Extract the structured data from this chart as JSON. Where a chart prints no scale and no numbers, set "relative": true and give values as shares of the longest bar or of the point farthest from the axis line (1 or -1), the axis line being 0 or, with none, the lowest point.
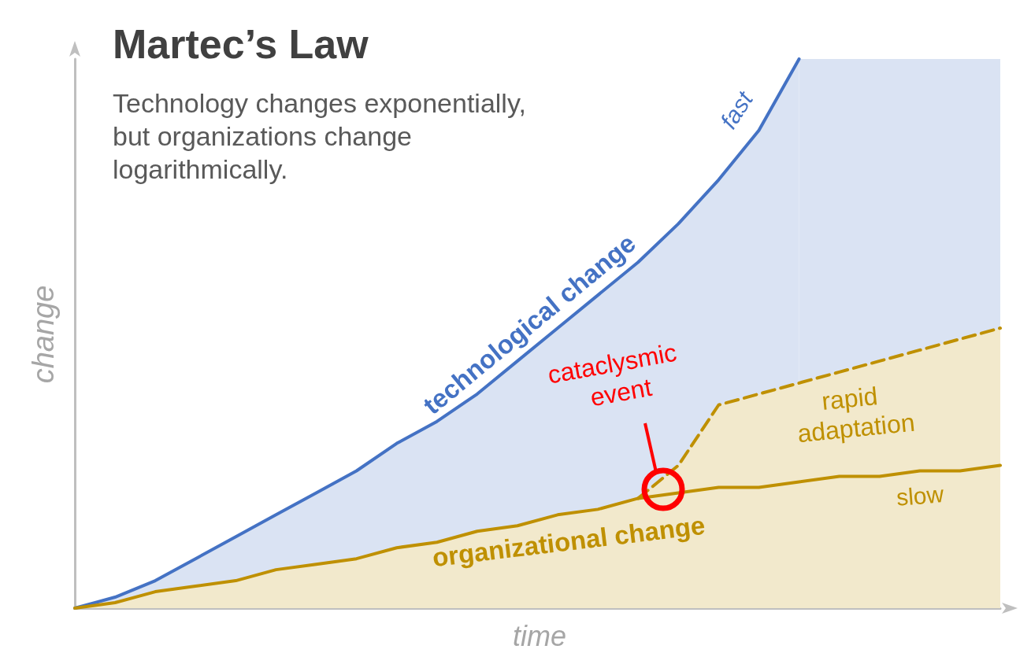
{
  "chart_data": {
    "type": "line",
    "title": "Martec’s Law",
    "subtitle": "Technology changes exponentially, but organizations change logarithmically.",
    "xlabel": "time",
    "ylabel": "change",
    "relative": true,
    "marker": "none",
    "annotations": [
      "fast",
      "cataclysmic event",
      "rapid adaptation",
      "slow"
    ],
    "categories": [
      null,
      null,
      null,
      null,
      null,
      null,
      null,
      null,
      null,
      null,
      null,
      null,
      null,
      null,
      null,
      null,
      null,
      null,
      null,
      null,
      null,
      null,
      null,
      null
    ],
    "series": [
      {
        "type": "area",
        "name": "technological change",
        "color": "#4472c4",
        "values": [
          0,
          0.02,
          0.05,
          0.09,
          0.13,
          0.17,
          0.21,
          0.25,
          0.3,
          0.34,
          0.39,
          0.45,
          0.51,
          0.57,
          0.63,
          0.7,
          0.78,
          0.87,
          1,
          null,
          null,
          null,
          null,
          null
        ]
      },
      {
        "type": "area",
        "color": "#dae3f3",
        "line_style": "none",
        "values": [
          null,
          null,
          null,
          null,
          null,
          null,
          null,
          null,
          null,
          null,
          null,
          null,
          null,
          null,
          null,
          null,
          null,
          null,
          1,
          1,
          1,
          1,
          1,
          1
        ]
      },
      {
        "type": "area",
        "color": "#bf9000",
        "line_style": "dashed",
        "values": [
          null,
          null,
          null,
          null,
          null,
          null,
          null,
          null,
          null,
          null,
          null,
          null,
          null,
          null,
          0.2,
          0.26,
          0.37,
          0.39,
          0.41,
          0.43,
          0.45,
          0.47,
          0.49,
          0.51
        ]
      },
      {
        "type": "area",
        "name": "organizational change",
        "color": "#bf9000",
        "values": [
          0,
          0.01,
          0.03,
          0.04,
          0.05,
          0.07,
          0.08,
          0.09,
          0.11,
          0.12,
          0.14,
          0.15,
          0.17,
          0.18,
          0.2,
          0.21,
          0.22,
          0.22,
          0.23,
          0.24,
          0.24,
          0.25,
          0.25,
          0.26
        ]
      }
    ]
  }
}
